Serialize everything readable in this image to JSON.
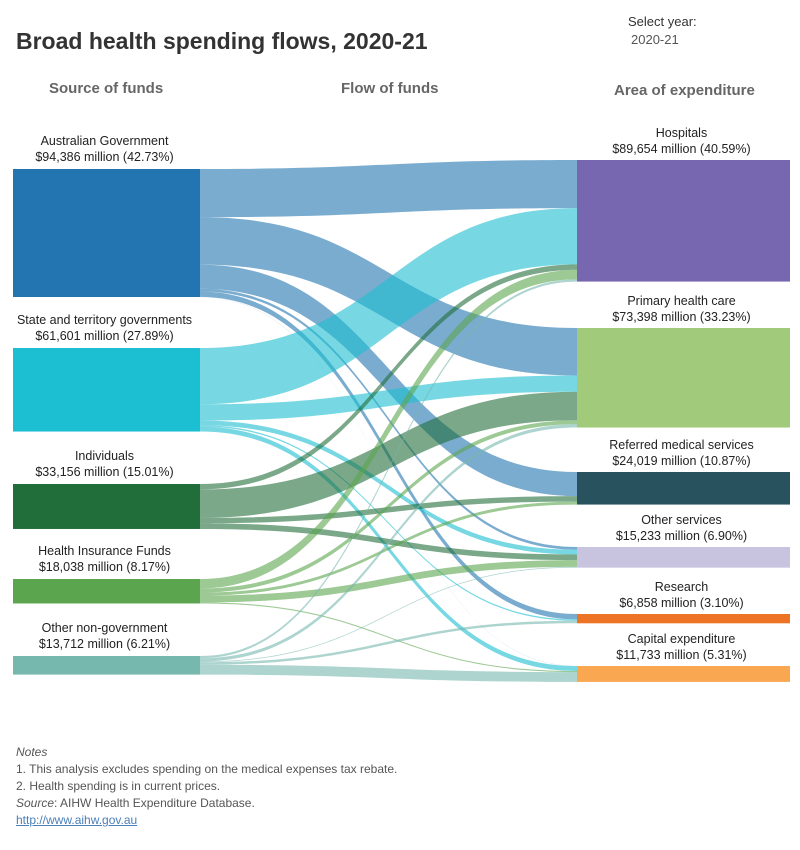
{
  "title": "Broad health spending flows, 2020-21",
  "year_select": {
    "label": "Select year:",
    "value": "2020-21"
  },
  "headers": {
    "source": "Source of funds",
    "flow": "Flow of funds",
    "area": "Area of expenditure"
  },
  "sources": [
    {
      "id": "ag",
      "name": "Australian Government",
      "value_text": "$94,386 million (42.73%)",
      "value": 94386,
      "share": 42.73,
      "color": "#2275b0"
    },
    {
      "id": "st",
      "name": "State and territory governments",
      "value_text": "$61,601 million (27.89%)",
      "value": 61601,
      "share": 27.89,
      "color": "#1cbed1"
    },
    {
      "id": "ind",
      "name": "Individuals",
      "value_text": "$33,156 million (15.01%)",
      "value": 33156,
      "share": 15.01,
      "color": "#226e3b"
    },
    {
      "id": "hif",
      "name": "Health Insurance Funds",
      "value_text": "$18,038 million (8.17%)",
      "value": 18038,
      "share": 8.17,
      "color": "#5ba54f"
    },
    {
      "id": "ong",
      "name": "Other non-government",
      "value_text": "$13,712 million (6.21%)",
      "value": 13712,
      "share": 6.21,
      "color": "#76b8ae"
    }
  ],
  "areas": [
    {
      "id": "hosp",
      "name": "Hospitals",
      "value_text": "$89,654 million (40.59%)",
      "value": 89654,
      "share": 40.59,
      "color": "#7766b0"
    },
    {
      "id": "phc",
      "name": "Primary health care",
      "value_text": "$73,398 million (33.23%)",
      "value": 73398,
      "share": 33.23,
      "color": "#a1cb7b"
    },
    {
      "id": "rms",
      "name": "Referred medical services",
      "value_text": "$24,019 million (10.87%)",
      "value": 24019,
      "share": 10.87,
      "color": "#29525f"
    },
    {
      "id": "oth",
      "name": "Other services",
      "value_text": "$15,233 million (6.90%)",
      "value": 15233,
      "share": 6.9,
      "color": "#c8c3de"
    },
    {
      "id": "res",
      "name": "Research",
      "value_text": "$6,858 million (3.10%)",
      "value": 6858,
      "share": 3.1,
      "color": "#ec7424"
    },
    {
      "id": "cap",
      "name": "Capital expenditure",
      "value_text": "$11,733 million (5.31%)",
      "value": 11733,
      "share": 5.31,
      "color": "#f9a750"
    }
  ],
  "flows": [
    {
      "from": "ag",
      "to": "hosp",
      "value": 35500
    },
    {
      "from": "ag",
      "to": "phc",
      "value": 35000
    },
    {
      "from": "ag",
      "to": "rms",
      "value": 17800
    },
    {
      "from": "ag",
      "to": "oth",
      "value": 2000
    },
    {
      "from": "ag",
      "to": "res",
      "value": 4000
    },
    {
      "from": "ag",
      "to": "cap",
      "value": 86
    },
    {
      "from": "st",
      "to": "hosp",
      "value": 41500
    },
    {
      "from": "st",
      "to": "phc",
      "value": 12000
    },
    {
      "from": "st",
      "to": "oth",
      "value": 3500
    },
    {
      "from": "st",
      "to": "res",
      "value": 1000
    },
    {
      "from": "st",
      "to": "cap",
      "value": 3601
    },
    {
      "from": "ind",
      "to": "hosp",
      "value": 4000
    },
    {
      "from": "ind",
      "to": "phc",
      "value": 21000
    },
    {
      "from": "ind",
      "to": "rms",
      "value": 4000
    },
    {
      "from": "ind",
      "to": "oth",
      "value": 4156
    },
    {
      "from": "hif",
      "to": "hosp",
      "value": 7000
    },
    {
      "from": "hif",
      "to": "phc",
      "value": 3000
    },
    {
      "from": "hif",
      "to": "rms",
      "value": 2219
    },
    {
      "from": "hif",
      "to": "oth",
      "value": 5019
    },
    {
      "from": "hif",
      "to": "cap",
      "value": 800
    },
    {
      "from": "ong",
      "to": "hosp",
      "value": 1654
    },
    {
      "from": "ong",
      "to": "phc",
      "value": 2398
    },
    {
      "from": "ong",
      "to": "oth",
      "value": 558
    },
    {
      "from": "ong",
      "to": "res",
      "value": 1858
    },
    {
      "from": "ong",
      "to": "cap",
      "value": 7244
    }
  ],
  "notes": {
    "heading": "Notes",
    "items": [
      "1.    This analysis excludes spending on the medical expenses tax rebate.",
      "2.    Health spending is in current prices."
    ],
    "source_label": "Source",
    "source_text": ": AIHW Health Expenditure Database.",
    "link": "http://www.aihw.gov.au"
  }
}
